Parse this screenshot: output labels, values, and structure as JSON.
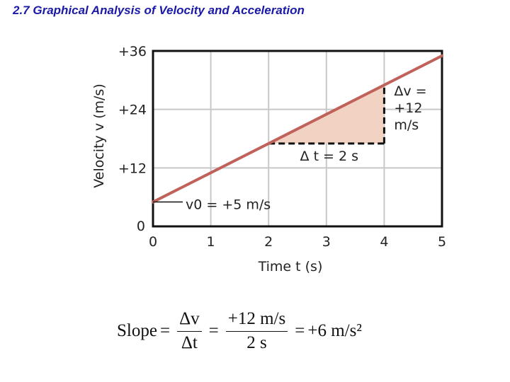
{
  "slide": {
    "title": "2.7 Graphical Analysis of Velocity and Acceleration"
  },
  "chart_data": {
    "type": "line",
    "xlabel": "Time  t  (s)",
    "ylabel": "Velocity  v  (m/s)",
    "xlim": [
      0,
      5
    ],
    "ylim": [
      0,
      36
    ],
    "x_ticks": [
      "0",
      "1",
      "2",
      "3",
      "4",
      "5"
    ],
    "y_ticks": [
      "0",
      "+12",
      "+24",
      "+36"
    ],
    "grid": true,
    "series": [
      {
        "x": [
          0,
          5
        ],
        "y": [
          5,
          35
        ],
        "color": "#c0625a"
      }
    ],
    "triangle": {
      "x0": 2,
      "x1": 4,
      "fill": "#f2d3c3"
    },
    "annotations": {
      "v0": "v0 = +5 m/s",
      "dt": "Δ t  = 2 s",
      "dv_lines": [
        "Δv =",
        "+12",
        "m/s"
      ]
    }
  },
  "formula": {
    "lhs": "Slope",
    "eq": "=",
    "frac1_num": "Δv",
    "frac1_den": "Δt",
    "frac2_num": "+12 m/s",
    "frac2_den": "2 s",
    "result": "+6 m/s²"
  }
}
